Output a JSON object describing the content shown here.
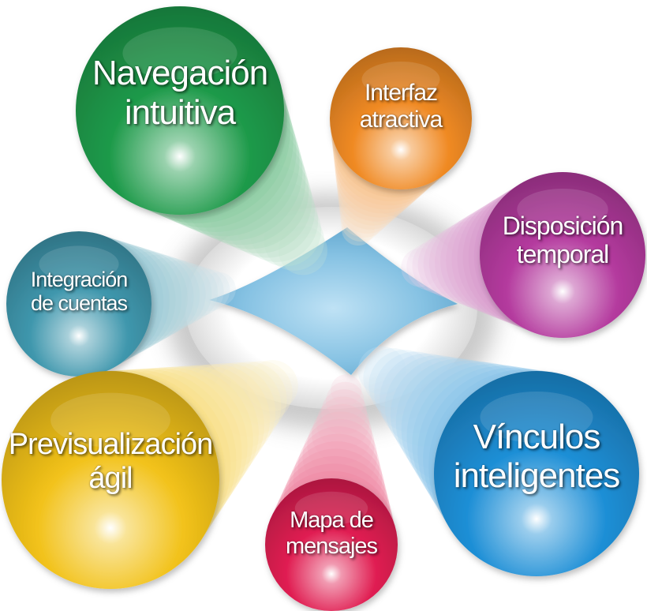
{
  "center": {
    "color": "#7fbde0"
  },
  "nodes": [
    {
      "id": "navegacion",
      "lines": [
        "Navegación",
        "intuitiva"
      ],
      "color": "#1e9a4a"
    },
    {
      "id": "interfaz",
      "lines": [
        "Interfaz",
        "atractiva"
      ],
      "color": "#f08a24"
    },
    {
      "id": "disposicion",
      "lines": [
        "Disposición",
        "temporal"
      ],
      "color": "#b43a9e"
    },
    {
      "id": "integracion",
      "lines": [
        "Integración",
        "de cuentas"
      ],
      "color": "#3f97ad"
    },
    {
      "id": "vinculos",
      "lines": [
        "Vínculos",
        "inteligentes"
      ],
      "color": "#1e8fd6"
    },
    {
      "id": "previsualizacion",
      "lines": [
        "Previsualización",
        "ágil"
      ],
      "color": "#f2c21a"
    },
    {
      "id": "mapa",
      "lines": [
        "Mapa de",
        "mensajes"
      ],
      "color": "#e01e52"
    }
  ]
}
